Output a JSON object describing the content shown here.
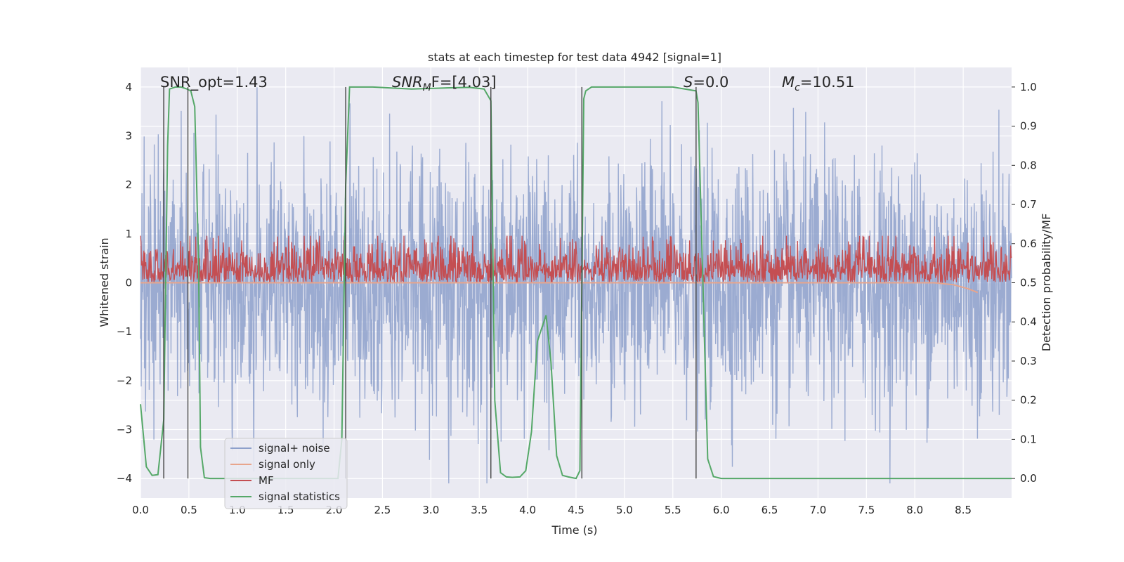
{
  "chart_data": {
    "type": "line",
    "title": "stats at each timestep for test data 4942 [signal=1]",
    "xlabel": "Time (s)",
    "ylabel_left": "Whitened strain",
    "ylabel_right": "Detection probability/MF",
    "xlim": [
      0,
      9.0
    ],
    "ylim_left": [
      -4.4,
      4.4
    ],
    "ylim_right": [
      -0.05,
      1.05
    ],
    "x_ticks": [
      "0.0",
      "0.5",
      "1.0",
      "1.5",
      "2.0",
      "2.5",
      "3.0",
      "3.5",
      "4.0",
      "4.5",
      "5.0",
      "5.5",
      "6.0",
      "6.5",
      "7.0",
      "7.5",
      "8.0",
      "8.5"
    ],
    "y_ticks_left": [
      "−4",
      "−3",
      "−2",
      "−1",
      "0",
      "1",
      "2",
      "3",
      "4"
    ],
    "y_ticks_right": [
      "0.0",
      "0.1",
      "0.2",
      "0.3",
      "0.4",
      "0.5",
      "0.6",
      "0.7",
      "0.8",
      "0.9",
      "1.0"
    ],
    "grid": true,
    "legend_location": "lower-left",
    "annotations": {
      "snr_opt": "SNR_opt=1.43",
      "snr_mf_main": "SNR",
      "snr_mf_sub": "M",
      "snr_mf_rest": "F=[4.03]",
      "s_main": "S",
      "s_rest": "=0.0",
      "mc_main": "M",
      "mc_sub": "c",
      "mc_rest": "=10.51"
    },
    "vertical_lines_x": [
      0.24,
      0.49,
      2.12,
      3.62,
      4.56,
      5.74
    ],
    "series": [
      {
        "name": "signal+ noise",
        "color": "#8da0cb",
        "axis": "left",
        "description_values": "noise band spanning roughly -4 to 4 over the full time range"
      },
      {
        "name": "signal only",
        "color": "#e8a58c",
        "axis": "left",
        "x": [
          0.0,
          8.2,
          8.4,
          8.55,
          8.65
        ],
        "y": [
          0.0,
          0.0,
          -0.04,
          -0.12,
          -0.2
        ]
      },
      {
        "name": "MF",
        "color": "#c44e52",
        "axis": "right",
        "band": [
          0.5,
          0.61
        ]
      },
      {
        "name": "signal statistics",
        "color": "#55a868",
        "axis": "right",
        "x": [
          0.0,
          0.06,
          0.12,
          0.18,
          0.24,
          0.28,
          0.3,
          0.36,
          0.42,
          0.48,
          0.52,
          0.56,
          0.6,
          0.62,
          0.66,
          0.72,
          0.8,
          1.0,
          1.5,
          1.9,
          2.04,
          2.08,
          2.12,
          2.16,
          2.2,
          2.4,
          2.8,
          3.2,
          3.4,
          3.55,
          3.62,
          3.66,
          3.72,
          3.78,
          3.84,
          3.92,
          3.98,
          4.04,
          4.1,
          4.14,
          4.19,
          4.24,
          4.3,
          4.36,
          4.42,
          4.5,
          4.54,
          4.58,
          4.6,
          4.66,
          4.72,
          5.0,
          5.5,
          5.74,
          5.76,
          5.86,
          5.92,
          6.0,
          6.5,
          7.5,
          8.5,
          9.0
        ],
        "y": [
          0.19,
          0.03,
          0.008,
          0.01,
          0.15,
          0.85,
          0.995,
          1.0,
          1.0,
          0.995,
          0.99,
          0.95,
          0.55,
          0.08,
          0.002,
          0.0,
          0.0,
          0.0,
          0.0,
          0.0,
          0.0,
          0.1,
          0.75,
          1.0,
          1.0,
          1.0,
          0.995,
          0.998,
          0.999,
          0.995,
          0.965,
          0.2,
          0.015,
          0.004,
          0.003,
          0.004,
          0.02,
          0.12,
          0.35,
          0.38,
          0.417,
          0.3,
          0.058,
          0.008,
          0.004,
          0.0,
          0.02,
          0.97,
          0.99,
          1.0,
          1.0,
          1.0,
          1.0,
          0.99,
          0.96,
          0.05,
          0.005,
          0.0,
          0.0,
          0.0,
          0.0,
          0.0
        ]
      }
    ]
  }
}
